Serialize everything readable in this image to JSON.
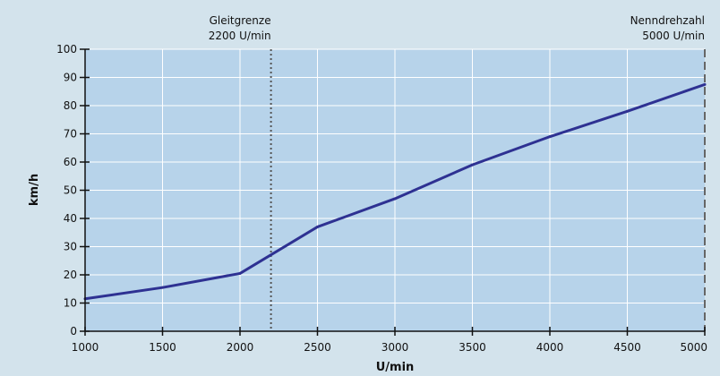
{
  "chart_data": {
    "type": "line",
    "xlabel": "U/min",
    "ylabel": "km/h",
    "xlim": [
      1000,
      5000
    ],
    "ylim": [
      0,
      100
    ],
    "x_ticks": [
      1000,
      1500,
      2000,
      2500,
      3000,
      3500,
      4000,
      4500,
      5000
    ],
    "y_ticks": [
      0,
      10,
      20,
      30,
      40,
      50,
      60,
      70,
      80,
      90,
      100
    ],
    "grid": true,
    "colors": {
      "plot_bg": "#b7d3ea",
      "page_bg": "#d3e3ec",
      "line": "#2e3192",
      "grid": "#ffffff"
    },
    "series": [
      {
        "x": [
          1000,
          1500,
          2000,
          2500,
          3000,
          3500,
          4000,
          4500,
          5000
        ],
        "y": [
          11.5,
          15.5,
          20.5,
          37,
          47,
          59,
          69,
          78,
          87.5
        ]
      }
    ],
    "reference_lines": [
      {
        "x": 2200,
        "label_line1": "Gleitgrenze",
        "label_line2": "2200 U/min",
        "style": "dotted",
        "label_anchor": "end"
      },
      {
        "x": 5000,
        "label_line1": "Nenndrehzahl",
        "label_line2": "5000 U/min",
        "style": "dashed",
        "label_anchor": "end"
      }
    ]
  }
}
